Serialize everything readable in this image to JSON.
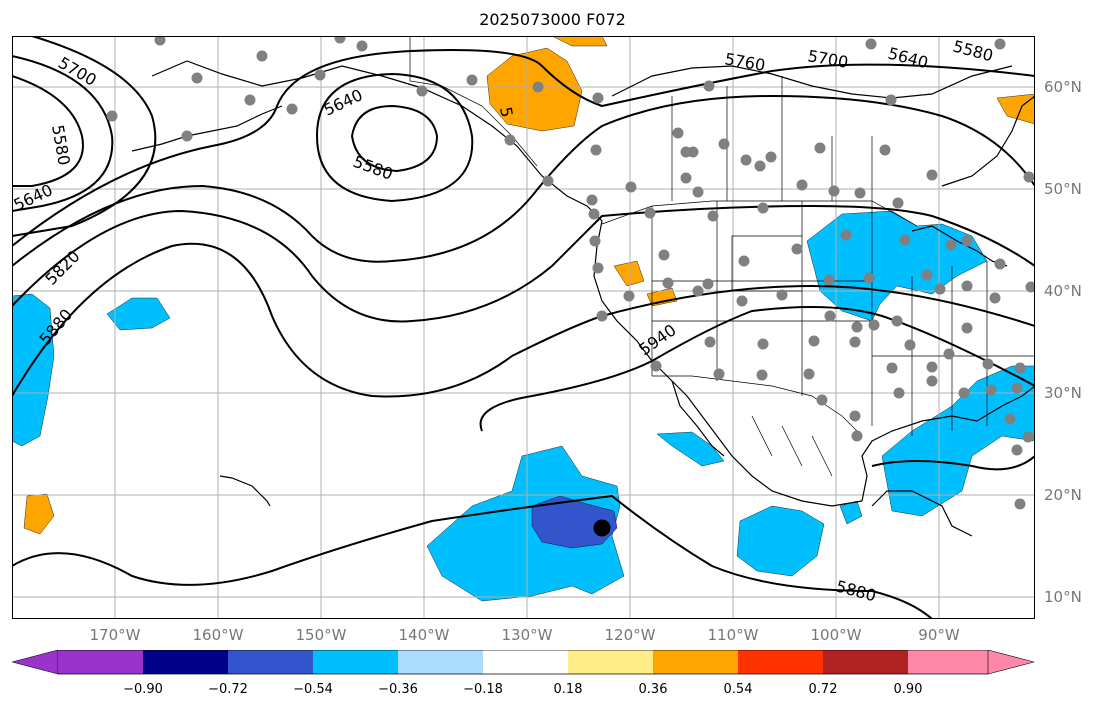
{
  "title": "2025073000 F072",
  "lat_labels": [
    "60°N",
    "50°N",
    "40°N",
    "30°N",
    "20°N",
    "10°N"
  ],
  "lon_labels": [
    "170°W",
    "160°W",
    "150°W",
    "140°W",
    "130°W",
    "120°W",
    "110°W",
    "100°W",
    "90°W"
  ],
  "contour_labels": [
    "5700",
    "5580",
    "5640",
    "5820",
    "5880",
    "5640",
    "5580",
    "5760",
    "5700",
    "5640",
    "5580",
    "5940",
    "5880",
    "5"
  ],
  "colorbar": {
    "ticks": [
      "−0.90",
      "−0.72",
      "−0.54",
      "−0.36",
      "−0.18",
      "0.18",
      "0.36",
      "0.54",
      "0.72",
      "0.90"
    ],
    "colors": [
      "#9933cc",
      "#000088",
      "#3355cc",
      "#00bfff",
      "#aaddff",
      "#ffffff",
      "#ffee88",
      "#ffa500",
      "#ff3300",
      "#b22222",
      "#ff88aa"
    ]
  },
  "colors": {
    "negative_fill": "#00bfff",
    "strong_negative_fill": "#3355cc",
    "positive_fill": "#ffa500",
    "station_dot": "#808080",
    "grid": "#b0b0b0"
  }
}
